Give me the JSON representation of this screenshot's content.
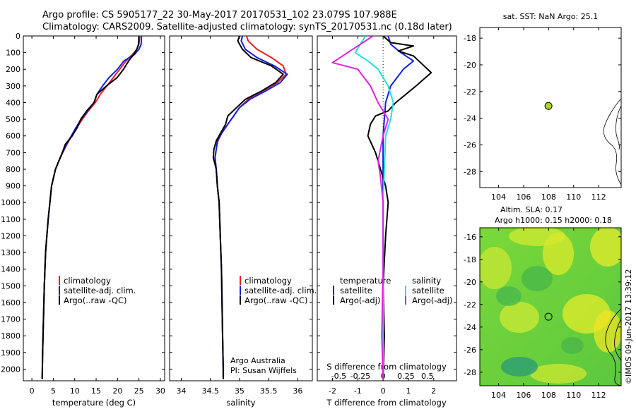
{
  "header": {
    "title_line1": "Argo profile: CS 5905177_22 30-May-2017 20170531_102 23.079S 107.988E",
    "title_line2": "Climatology: CARS2009. Satellite-adjusted climatology: synTS_20170531.nc (0.18d later)"
  },
  "side_label": "©IMOS 09-Jun-2017 13:39:12",
  "depth_ticks": [
    0,
    100,
    200,
    300,
    400,
    500,
    600,
    700,
    800,
    900,
    1000,
    1100,
    1200,
    1300,
    1400,
    1500,
    1600,
    1700,
    1800,
    1900,
    2000
  ],
  "colors": {
    "climatology": "#e8201e",
    "satellite_adj": "#1020e0",
    "argo": "#000000",
    "salinity_satellite": "#22e0e0",
    "salinity_argo": "#e020e0",
    "float_marker": "#a8d820"
  },
  "chart_data": [
    {
      "type": "line",
      "name": "temperature_profile",
      "xlabel": "temperature (deg C)",
      "ylabel": "",
      "xlim": [
        -2,
        31
      ],
      "ylim": [
        2070,
        0
      ],
      "xticks": [
        0,
        5,
        10,
        15,
        20,
        25,
        30
      ],
      "y_reversed": true,
      "legend": [
        "climatology",
        "satellite-adj. clim.",
        "Argo(..raw -QC)"
      ],
      "series": [
        {
          "name": "climatology",
          "color": "#e8201e",
          "x": [
            25.2,
            25.0,
            24.5,
            23.5,
            22.0,
            20.5,
            19.0,
            17.5,
            16.0,
            14.8,
            13.2,
            11.8,
            10.5,
            9.3,
            8.2,
            7.2,
            6.3,
            5.5,
            4.6,
            4.2,
            3.8,
            3.5,
            3.2,
            2.9,
            2.7,
            2.5,
            2.4
          ],
          "y": [
            0,
            50,
            80,
            110,
            150,
            200,
            250,
            300,
            350,
            400,
            450,
            500,
            550,
            600,
            650,
            700,
            750,
            800,
            900,
            1000,
            1100,
            1200,
            1300,
            1500,
            1700,
            1900,
            2060
          ]
        },
        {
          "name": "satellite-adj. clim.",
          "color": "#1020e0",
          "x": [
            25.6,
            25.5,
            25.0,
            24.0,
            21.5,
            20.0,
            18.0,
            16.5,
            15.2,
            14.5,
            13.0,
            11.5,
            10.3,
            9.2,
            8.1,
            7.1,
            6.3,
            5.5,
            4.6,
            4.2,
            3.8,
            3.5,
            3.2,
            2.9,
            2.7,
            2.5,
            2.4
          ],
          "y": [
            0,
            50,
            80,
            110,
            150,
            200,
            250,
            300,
            350,
            400,
            450,
            500,
            550,
            600,
            650,
            700,
            750,
            800,
            900,
            1000,
            1100,
            1200,
            1300,
            1500,
            1700,
            1900,
            2060
          ]
        },
        {
          "name": "Argo(..raw -QC)",
          "color": "#000000",
          "x": [
            25.0,
            24.9,
            24.5,
            23.8,
            22.6,
            21.4,
            19.9,
            17.4,
            15.2,
            14.5,
            12.8,
            11.4,
            10.6,
            9.4,
            7.8,
            7.1,
            6.3,
            5.5,
            4.6,
            4.2,
            3.8,
            3.5,
            3.2,
            2.9,
            2.7,
            2.5,
            2.4
          ],
          "y": [
            0,
            50,
            80,
            110,
            150,
            200,
            250,
            300,
            350,
            400,
            450,
            500,
            550,
            600,
            650,
            700,
            750,
            800,
            900,
            1000,
            1100,
            1200,
            1300,
            1500,
            1700,
            1900,
            2060
          ]
        }
      ]
    },
    {
      "type": "line",
      "name": "salinity_profile",
      "xlabel": "salinity",
      "ylabel": "",
      "xlim": [
        33.8,
        36.25
      ],
      "ylim": [
        2070,
        0
      ],
      "xticks": [
        34,
        34.5,
        35,
        35.5,
        36
      ],
      "y_reversed": true,
      "legend": [
        "climatology",
        "satellite-adj. clim.",
        "Argo(..raw -QC)"
      ],
      "annotation_line1": "Argo Australia",
      "annotation_line2": "PI: Susan Wijffels",
      "series": [
        {
          "name": "climatology",
          "color": "#e8201e",
          "x": [
            35.12,
            35.15,
            35.3,
            35.55,
            35.75,
            35.8,
            35.65,
            35.4,
            35.15,
            35.0,
            34.9,
            34.8,
            34.7,
            34.63,
            34.6,
            34.58,
            34.6,
            34.62,
            34.65,
            34.67,
            34.69,
            34.7,
            34.71,
            34.72,
            34.72
          ],
          "y": [
            0,
            30,
            80,
            130,
            180,
            230,
            280,
            330,
            380,
            430,
            480,
            530,
            580,
            630,
            680,
            730,
            800,
            900,
            1000,
            1200,
            1400,
            1600,
            1800,
            2000,
            2060
          ]
        },
        {
          "name": "satellite-adj. clim.",
          "color": "#1020e0",
          "x": [
            35.05,
            35.03,
            35.1,
            35.3,
            35.6,
            35.82,
            35.7,
            35.45,
            35.18,
            35.0,
            34.9,
            34.8,
            34.7,
            34.62,
            34.6,
            34.58,
            34.6,
            34.62,
            34.65,
            34.67,
            34.69,
            34.7,
            34.71,
            34.72,
            34.72
          ],
          "y": [
            0,
            30,
            80,
            130,
            180,
            230,
            280,
            330,
            380,
            430,
            480,
            530,
            580,
            630,
            680,
            730,
            800,
            900,
            1000,
            1200,
            1400,
            1600,
            1800,
            2000,
            2060
          ]
        },
        {
          "name": "Argo(..raw -QC)",
          "color": "#000000",
          "x": [
            35.0,
            34.97,
            35.05,
            35.2,
            35.55,
            35.75,
            35.62,
            35.38,
            35.1,
            34.95,
            34.8,
            34.76,
            34.68,
            34.6,
            34.56,
            34.55,
            34.6,
            34.62,
            34.65,
            34.67,
            34.69,
            34.7,
            34.71,
            34.72,
            34.72
          ],
          "y": [
            0,
            30,
            80,
            130,
            180,
            230,
            280,
            330,
            380,
            430,
            480,
            530,
            580,
            630,
            680,
            730,
            800,
            900,
            1000,
            1200,
            1400,
            1600,
            1800,
            2000,
            2060
          ]
        }
      ]
    },
    {
      "type": "line",
      "name": "difference_profile",
      "xlabel": "T difference from climatology",
      "xlabel_top": "S difference from climatology",
      "xlim": [
        -2.6,
        2.9
      ],
      "ylim": [
        2070,
        0
      ],
      "xticks_T": [
        -2,
        -1,
        0,
        1,
        2
      ],
      "xticks_S_labels": [
        "-0.5",
        "-0.25",
        "0",
        "0.25",
        "0.5"
      ],
      "xticks_S_positions_T": [
        -1.75,
        -0.9,
        0,
        0.9,
        1.75
      ],
      "y_reversed": true,
      "legend_temperature_title": "temperature",
      "legend_salinity_title": "salinity",
      "legend": [
        "satellite",
        "Argo(-adj)",
        "satellite",
        "Argo(-adj)"
      ],
      "series": [
        {
          "name": "temperature satellite",
          "color": "#1020e0",
          "x": [
            0.2,
            0.3,
            0.7,
            1.2,
            0.8,
            0.3,
            0.1,
            0.05,
            0.0,
            0.0,
            0.0,
            0.0,
            0.0,
            0.0,
            0.0,
            0.0,
            0.0
          ],
          "y": [
            0,
            50,
            100,
            150,
            200,
            300,
            400,
            500,
            600,
            800,
            1000,
            1200,
            1400,
            1600,
            1800,
            2000,
            2060
          ]
        },
        {
          "name": "temperature Argo(-adj)",
          "color": "#000000",
          "x": [
            0.0,
            0.3,
            1.2,
            0.6,
            1.2,
            1.9,
            1.3,
            0.9,
            0.5,
            0.2,
            -0.3,
            -0.5,
            -0.6,
            -0.3,
            -0.1,
            0.1,
            0.2,
            0.1,
            0.0,
            0.05,
            0.0
          ],
          "y": [
            0,
            40,
            60,
            90,
            120,
            220,
            300,
            350,
            400,
            450,
            480,
            530,
            600,
            700,
            800,
            900,
            1000,
            1200,
            1500,
            1800,
            2060
          ]
        },
        {
          "name": "salinity satellite",
          "color": "#22e0e0",
          "x": [
            -0.7,
            -0.9,
            -1.1,
            -0.6,
            -0.2,
            0.2,
            0.4,
            0.3,
            0.1,
            0.05,
            0.0,
            0.0,
            0.0,
            0.0,
            0.0
          ],
          "y": [
            0,
            50,
            100,
            150,
            200,
            300,
            400,
            500,
            600,
            800,
            1000,
            1200,
            1500,
            1800,
            2060
          ]
        },
        {
          "name": "salinity Argo(-adj)",
          "color": "#e020e0",
          "x": [
            -0.4,
            -1.0,
            -1.4,
            -2.0,
            -1.0,
            -0.5,
            -0.2,
            0.2,
            0.0,
            -0.2,
            -0.1,
            0.0,
            0.0,
            -0.05,
            0.0
          ],
          "y": [
            0,
            60,
            100,
            160,
            200,
            300,
            400,
            500,
            600,
            750,
            850,
            1000,
            1400,
            1800,
            2060
          ]
        }
      ]
    },
    {
      "type": "scatter",
      "name": "sst_map",
      "title": "sat. SST: NaN Argo: 25.1",
      "xlim": [
        102.5,
        113.8
      ],
      "ylim": [
        -29.2,
        -17.2
      ],
      "xticks": [
        104,
        106,
        108,
        110,
        112
      ],
      "yticks": [
        -18,
        -20,
        -22,
        -24,
        -26,
        -28
      ],
      "points": [
        {
          "lon": 107.988,
          "lat": -23.079
        }
      ]
    },
    {
      "type": "heatmap",
      "name": "sla_map",
      "title_line1": "Altim. SLA: 0.17",
      "title_line2": "Argo h1000: 0.15 h2000: 0.18",
      "xlim": [
        102.5,
        113.8
      ],
      "ylim": [
        -29.2,
        -15.2
      ],
      "xticks": [
        104,
        106,
        108,
        110,
        112
      ],
      "yticks": [
        -16,
        -18,
        -20,
        -22,
        -24,
        -26,
        -28
      ],
      "points": [
        {
          "lon": 107.988,
          "lat": -23.079
        }
      ]
    }
  ]
}
